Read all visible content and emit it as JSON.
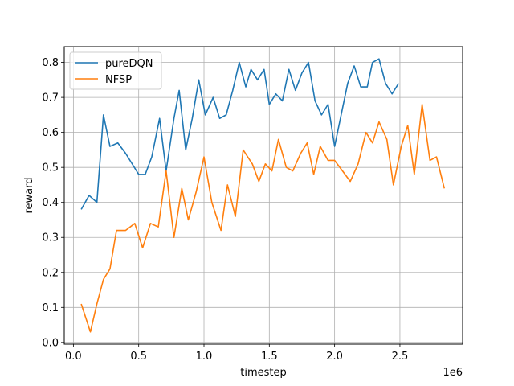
{
  "chart_data": {
    "type": "line",
    "xlabel": "timestep",
    "ylabel": "reward",
    "x_offset_label": "1e6",
    "xlim": [
      -70000,
      2980000
    ],
    "ylim": [
      -0.005,
      0.845
    ],
    "grid": true,
    "legend_position": "top-left",
    "x_ticks": [
      {
        "value": 0,
        "label": "0.0"
      },
      {
        "value": 500000,
        "label": "0.5"
      },
      {
        "value": 1000000,
        "label": "1.0"
      },
      {
        "value": 1500000,
        "label": "1.5"
      },
      {
        "value": 2000000,
        "label": "2.0"
      },
      {
        "value": 2500000,
        "label": "2.5"
      }
    ],
    "y_ticks": [
      {
        "value": 0.0,
        "label": "0.0"
      },
      {
        "value": 0.1,
        "label": "0.1"
      },
      {
        "value": 0.2,
        "label": "0.2"
      },
      {
        "value": 0.3,
        "label": "0.3"
      },
      {
        "value": 0.4,
        "label": "0.4"
      },
      {
        "value": 0.5,
        "label": "0.5"
      },
      {
        "value": 0.6,
        "label": "0.6"
      },
      {
        "value": 0.7,
        "label": "0.7"
      },
      {
        "value": 0.8,
        "label": "0.8"
      }
    ],
    "series": [
      {
        "name": "pureDQN",
        "color": "#1f77b4",
        "points": [
          [
            60000,
            0.38
          ],
          [
            120000,
            0.42
          ],
          [
            180000,
            0.4
          ],
          [
            230000,
            0.65
          ],
          [
            280000,
            0.56
          ],
          [
            340000,
            0.57
          ],
          [
            400000,
            0.54
          ],
          [
            500000,
            0.48
          ],
          [
            550000,
            0.48
          ],
          [
            600000,
            0.53
          ],
          [
            660000,
            0.64
          ],
          [
            710000,
            0.49
          ],
          [
            770000,
            0.64
          ],
          [
            810000,
            0.72
          ],
          [
            860000,
            0.55
          ],
          [
            910000,
            0.64
          ],
          [
            960000,
            0.75
          ],
          [
            1010000,
            0.65
          ],
          [
            1070000,
            0.7
          ],
          [
            1120000,
            0.64
          ],
          [
            1170000,
            0.65
          ],
          [
            1220000,
            0.72
          ],
          [
            1270000,
            0.8
          ],
          [
            1320000,
            0.73
          ],
          [
            1360000,
            0.78
          ],
          [
            1410000,
            0.75
          ],
          [
            1460000,
            0.78
          ],
          [
            1500000,
            0.68
          ],
          [
            1550000,
            0.71
          ],
          [
            1600000,
            0.69
          ],
          [
            1650000,
            0.78
          ],
          [
            1700000,
            0.72
          ],
          [
            1750000,
            0.77
          ],
          [
            1800000,
            0.8
          ],
          [
            1850000,
            0.69
          ],
          [
            1900000,
            0.65
          ],
          [
            1950000,
            0.68
          ],
          [
            2000000,
            0.56
          ],
          [
            2050000,
            0.65
          ],
          [
            2100000,
            0.74
          ],
          [
            2150000,
            0.79
          ],
          [
            2200000,
            0.73
          ],
          [
            2250000,
            0.73
          ],
          [
            2290000,
            0.8
          ],
          [
            2340000,
            0.81
          ],
          [
            2390000,
            0.74
          ],
          [
            2440000,
            0.71
          ],
          [
            2490000,
            0.74
          ]
        ]
      },
      {
        "name": "NFSP",
        "color": "#ff7f0e",
        "points": [
          [
            60000,
            0.11
          ],
          [
            130000,
            0.03
          ],
          [
            180000,
            0.11
          ],
          [
            230000,
            0.18
          ],
          [
            280000,
            0.21
          ],
          [
            330000,
            0.32
          ],
          [
            400000,
            0.32
          ],
          [
            470000,
            0.34
          ],
          [
            530000,
            0.27
          ],
          [
            590000,
            0.34
          ],
          [
            650000,
            0.33
          ],
          [
            710000,
            0.49
          ],
          [
            770000,
            0.3
          ],
          [
            830000,
            0.44
          ],
          [
            880000,
            0.35
          ],
          [
            940000,
            0.43
          ],
          [
            1000000,
            0.53
          ],
          [
            1060000,
            0.4
          ],
          [
            1130000,
            0.32
          ],
          [
            1180000,
            0.45
          ],
          [
            1240000,
            0.36
          ],
          [
            1300000,
            0.55
          ],
          [
            1370000,
            0.51
          ],
          [
            1420000,
            0.46
          ],
          [
            1470000,
            0.51
          ],
          [
            1520000,
            0.49
          ],
          [
            1570000,
            0.58
          ],
          [
            1630000,
            0.5
          ],
          [
            1680000,
            0.49
          ],
          [
            1740000,
            0.54
          ],
          [
            1790000,
            0.57
          ],
          [
            1840000,
            0.48
          ],
          [
            1890000,
            0.56
          ],
          [
            1950000,
            0.52
          ],
          [
            2000000,
            0.52
          ],
          [
            2060000,
            0.49
          ],
          [
            2120000,
            0.46
          ],
          [
            2180000,
            0.51
          ],
          [
            2240000,
            0.6
          ],
          [
            2290000,
            0.57
          ],
          [
            2340000,
            0.63
          ],
          [
            2400000,
            0.58
          ],
          [
            2450000,
            0.45
          ],
          [
            2510000,
            0.56
          ],
          [
            2560000,
            0.62
          ],
          [
            2610000,
            0.48
          ],
          [
            2670000,
            0.68
          ],
          [
            2730000,
            0.52
          ],
          [
            2780000,
            0.53
          ],
          [
            2840000,
            0.44
          ]
        ]
      }
    ]
  }
}
